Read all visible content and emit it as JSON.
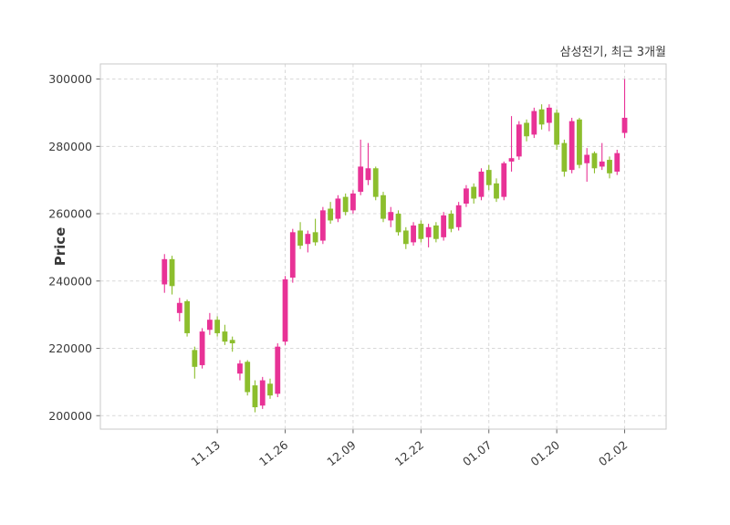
{
  "title": "삼성전기, 최근 3개월",
  "ylabel": "Price",
  "chart_data": {
    "type": "candlestick",
    "title": "삼성전기, 최근 3개월",
    "xlabel": "",
    "ylabel": "Price",
    "legend": "none",
    "grid": "dashed-both-axes",
    "ylim": [
      196000,
      304500
    ],
    "xlim": [
      -8.5,
      66.5
    ],
    "y_ticks": [
      200000,
      220000,
      240000,
      260000,
      280000,
      300000
    ],
    "x_ticks": [
      {
        "index": 7,
        "label": "11.13"
      },
      {
        "index": 16,
        "label": "11.26"
      },
      {
        "index": 25,
        "label": "12.09"
      },
      {
        "index": 34,
        "label": "12.22"
      },
      {
        "index": 43,
        "label": "01.07"
      },
      {
        "index": 52,
        "label": "01.20"
      },
      {
        "index": 61,
        "label": "02.02"
      }
    ],
    "colors": {
      "up": "#E83296",
      "down": "#8CBE2D",
      "grid": "#d8d8d8",
      "border": "#c9c9c9",
      "text": "#3a3a3a",
      "tick": "#666666"
    },
    "ohlc_order": [
      "open",
      "high",
      "low",
      "close"
    ],
    "candles": [
      [
        239000,
        248000,
        236500,
        246500
      ],
      [
        246500,
        247500,
        236000,
        238500
      ],
      [
        230500,
        235000,
        228000,
        233500
      ],
      [
        234000,
        234500,
        223500,
        224500
      ],
      [
        219500,
        220500,
        211000,
        214500
      ],
      [
        215000,
        226000,
        214000,
        225000
      ],
      [
        225500,
        230500,
        224000,
        228500
      ],
      [
        228500,
        229500,
        223500,
        224500
      ],
      [
        225000,
        227000,
        221000,
        222000
      ],
      [
        222500,
        223500,
        219000,
        221500
      ],
      [
        212500,
        216500,
        210500,
        215500
      ],
      [
        216000,
        216500,
        206000,
        207000
      ],
      [
        209000,
        210500,
        201000,
        202500
      ],
      [
        203000,
        211500,
        202000,
        210500
      ],
      [
        209500,
        211000,
        205000,
        206000
      ],
      [
        206500,
        221500,
        205500,
        220500
      ],
      [
        222000,
        241500,
        221000,
        240500
      ],
      [
        241000,
        255500,
        239500,
        254500
      ],
      [
        255000,
        257500,
        249500,
        250500
      ],
      [
        251000,
        255000,
        248500,
        254000
      ],
      [
        254500,
        258500,
        250500,
        251500
      ],
      [
        252000,
        262000,
        251000,
        261000
      ],
      [
        261500,
        263500,
        257000,
        258000
      ],
      [
        258500,
        265500,
        257500,
        264500
      ],
      [
        265000,
        266000,
        259500,
        260500
      ],
      [
        261000,
        267000,
        260000,
        266000
      ],
      [
        266500,
        282000,
        265500,
        274000
      ],
      [
        270000,
        281000,
        268500,
        273500
      ],
      [
        273500,
        274000,
        264000,
        265000
      ],
      [
        265500,
        266500,
        257500,
        258500
      ],
      [
        258000,
        262000,
        256000,
        260500
      ],
      [
        260000,
        261000,
        253500,
        254500
      ],
      [
        255000,
        256000,
        249500,
        251000
      ],
      [
        251500,
        257500,
        250500,
        256500
      ],
      [
        257000,
        258000,
        251500,
        252500
      ],
      [
        253000,
        257000,
        250000,
        256000
      ],
      [
        256500,
        257500,
        251500,
        252500
      ],
      [
        253000,
        260500,
        252000,
        259500
      ],
      [
        260000,
        261000,
        254500,
        255500
      ],
      [
        256000,
        263500,
        255000,
        262500
      ],
      [
        263000,
        268500,
        262000,
        267500
      ],
      [
        268000,
        269000,
        263000,
        264500
      ],
      [
        265000,
        273500,
        264000,
        272500
      ],
      [
        273000,
        274500,
        267000,
        268500
      ],
      [
        269000,
        270500,
        263500,
        264500
      ],
      [
        265000,
        275500,
        264000,
        275000
      ],
      [
        275500,
        289000,
        272500,
        276500
      ],
      [
        277000,
        287500,
        276000,
        286500
      ],
      [
        287000,
        288000,
        281500,
        283000
      ],
      [
        283500,
        291500,
        282500,
        290500
      ],
      [
        291000,
        292500,
        285000,
        286500
      ],
      [
        287000,
        292500,
        284500,
        291500
      ],
      [
        290000,
        291000,
        279000,
        280500
      ],
      [
        281000,
        282000,
        271000,
        272500
      ],
      [
        273000,
        288500,
        272000,
        287500
      ],
      [
        288000,
        288500,
        273500,
        274500
      ],
      [
        275000,
        279500,
        269500,
        277500
      ],
      [
        278000,
        278500,
        272000,
        273500
      ],
      [
        274000,
        281000,
        273000,
        275500
      ],
      [
        276000,
        277000,
        270500,
        272000
      ],
      [
        272500,
        279000,
        271500,
        278000
      ],
      [
        284000,
        300000,
        282500,
        288500
      ]
    ]
  }
}
